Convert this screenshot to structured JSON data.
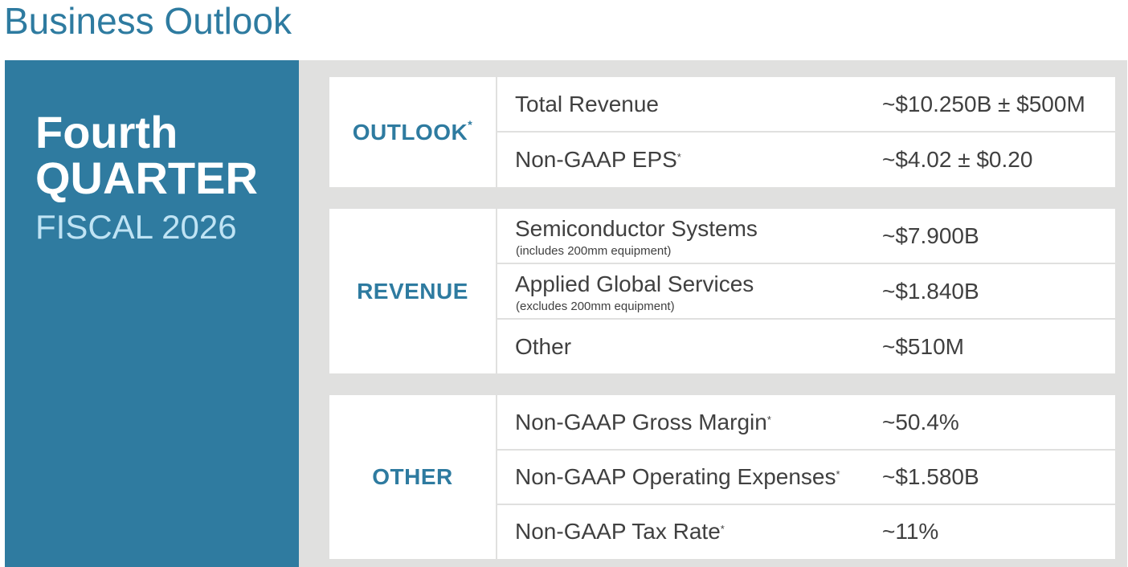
{
  "page_title": "Business Outlook",
  "colors": {
    "accent": "#2e7ba0",
    "panel": "#2f7ba0",
    "panel_light_text": "#bfe3f4",
    "background_gray": "#e0e0df"
  },
  "left_panel": {
    "line1": "Fourth",
    "line2": "QUARTER",
    "line3": "FISCAL 2026"
  },
  "sections": [
    {
      "label": "OUTLOOK",
      "label_mark": "*",
      "rows": [
        {
          "name": "Total Revenue",
          "mark": "",
          "note": "",
          "value": "~$10.250B ± $500M"
        },
        {
          "name": "Non-GAAP EPS",
          "mark": "*",
          "note": "",
          "value": "~$4.02 ± $0.20"
        }
      ]
    },
    {
      "label": "REVENUE",
      "label_mark": "",
      "rows": [
        {
          "name": "Semiconductor Systems",
          "mark": "",
          "note": "(includes 200mm equipment)",
          "value": "~$7.900B"
        },
        {
          "name": "Applied Global Services",
          "mark": "",
          "note": "(excludes 200mm equipment)",
          "value": "~$1.840B"
        },
        {
          "name": "Other",
          "mark": "",
          "note": "",
          "value": "~$510M"
        }
      ]
    },
    {
      "label": "OTHER",
      "label_mark": "",
      "rows": [
        {
          "name": "Non-GAAP Gross Margin",
          "mark": "*",
          "note": "",
          "value": "~50.4%"
        },
        {
          "name": "Non-GAAP Operating Expenses",
          "mark": "*",
          "note": "",
          "value": "~$1.580B"
        },
        {
          "name": "Non-GAAP Tax Rate",
          "mark": "*",
          "note": "",
          "value": "~11%"
        }
      ]
    }
  ]
}
